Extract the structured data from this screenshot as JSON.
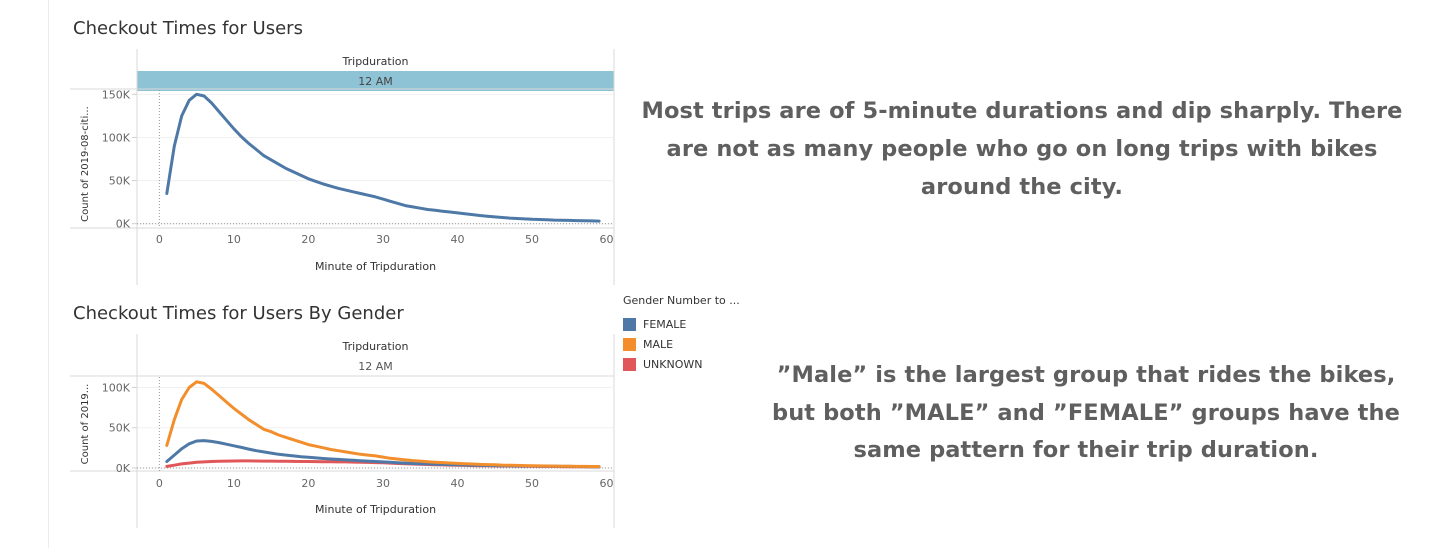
{
  "annotations": {
    "top": "Most trips are of 5-minute durations and dip sharply. There are not as many people who go on long trips with bikes around the city.",
    "bottom": "”Male” is the largest group that rides the bikes, but both ”MALE” and ”FEMALE” groups have the same pattern for their trip duration."
  },
  "legend": {
    "title": "Gender Number to ...",
    "items": [
      {
        "label": "FEMALE",
        "color": "#4e79a7"
      },
      {
        "label": "MALE",
        "color": "#f28e2b"
      },
      {
        "label": "UNKNOWN",
        "color": "#e15759"
      }
    ]
  },
  "chart_data": [
    {
      "type": "line",
      "title": "Checkout Times for Users",
      "column_header": "Tripduration",
      "column_value": "12 AM",
      "column_band_color": "#8ec3d6",
      "xlabel": "Minute of Tripduration",
      "ylabel": "Count of 2019-08-citi...",
      "xlim": [
        -3,
        61
      ],
      "ylim": [
        -5000,
        155000
      ],
      "x_ticks": [
        0,
        10,
        20,
        30,
        40,
        50,
        60
      ],
      "y_ticks": [
        {
          "value": 0,
          "label": "0K"
        },
        {
          "value": 50000,
          "label": "50K"
        },
        {
          "value": 100000,
          "label": "100K"
        },
        {
          "value": 150000,
          "label": "150K"
        }
      ],
      "x": [
        1,
        2,
        3,
        4,
        5,
        6,
        7,
        8,
        9,
        10,
        11,
        12,
        13,
        14,
        15,
        16,
        17,
        18,
        19,
        20,
        21,
        22,
        23,
        24,
        25,
        26,
        27,
        28,
        29,
        30,
        31,
        32,
        33,
        34,
        35,
        36,
        37,
        38,
        39,
        40,
        41,
        42,
        43,
        44,
        45,
        46,
        47,
        48,
        49,
        50,
        51,
        52,
        53,
        54,
        55,
        56,
        57,
        58,
        59
      ],
      "series": [
        {
          "color": "#4e79a7",
          "values": [
            35000,
            90000,
            125000,
            143000,
            150000,
            148000,
            140000,
            130000,
            120000,
            110000,
            101000,
            93000,
            86000,
            79000,
            74000,
            69000,
            64000,
            60000,
            56000,
            52000,
            49000,
            46000,
            43500,
            41000,
            39000,
            37000,
            35000,
            33000,
            31000,
            28500,
            26000,
            23500,
            21000,
            19500,
            18000,
            16500,
            15500,
            14500,
            13500,
            12500,
            11500,
            10500,
            9500,
            8700,
            7900,
            7200,
            6500,
            6000,
            5500,
            5100,
            4800,
            4500,
            4200,
            4000,
            3800,
            3600,
            3400,
            3200,
            3000
          ]
        }
      ]
    },
    {
      "type": "line",
      "title": "Checkout Times for Users By Gender",
      "column_header": "Tripduration",
      "column_value": "12 AM",
      "xlabel": "Minute of Tripduration",
      "ylabel": "Count of 2019...",
      "xlim": [
        -3,
        61
      ],
      "ylim": [
        -5000,
        113000
      ],
      "x_ticks": [
        0,
        10,
        20,
        30,
        40,
        50,
        60
      ],
      "y_ticks": [
        {
          "value": 0,
          "label": "0K"
        },
        {
          "value": 50000,
          "label": "50K"
        },
        {
          "value": 100000,
          "label": "100K"
        }
      ],
      "x": [
        1,
        2,
        3,
        4,
        5,
        6,
        7,
        8,
        9,
        10,
        11,
        12,
        13,
        14,
        15,
        16,
        17,
        18,
        19,
        20,
        21,
        22,
        23,
        24,
        25,
        26,
        27,
        28,
        29,
        30,
        31,
        32,
        33,
        34,
        35,
        36,
        37,
        38,
        39,
        40,
        41,
        42,
        43,
        44,
        45,
        46,
        47,
        48,
        49,
        50,
        51,
        52,
        53,
        54,
        55,
        56,
        57,
        58,
        59
      ],
      "series": [
        {
          "name": "UNKNOWN",
          "color": "#e15759",
          "values": [
            2000,
            3500,
            5000,
            6000,
            7000,
            7500,
            8000,
            8300,
            8500,
            8700,
            8800,
            8800,
            8700,
            8600,
            8500,
            8400,
            8300,
            8200,
            8100,
            8000,
            7900,
            7800,
            7700,
            7600,
            7500,
            7300,
            7100,
            6900,
            6700,
            6400,
            6000,
            5600,
            5200,
            4900,
            4600,
            4300,
            4000,
            3800,
            3600,
            3400,
            3200,
            3000,
            2800,
            2700,
            2600,
            2500,
            2400,
            2300,
            2200,
            2100,
            2000,
            1900,
            1800,
            1700,
            1600,
            1500,
            1400,
            1300,
            1200
          ]
        },
        {
          "name": "FEMALE",
          "color": "#4e79a7",
          "values": [
            8000,
            16000,
            24000,
            30000,
            33500,
            34000,
            33000,
            31500,
            29500,
            27500,
            25500,
            23500,
            21500,
            20000,
            18500,
            17000,
            16000,
            15000,
            14000,
            13200,
            12500,
            11800,
            11200,
            10600,
            10000,
            9500,
            9000,
            8500,
            8000,
            7500,
            7000,
            6500,
            6000,
            5600,
            5300,
            5000,
            4700,
            4400,
            4100,
            3900,
            3700,
            3500,
            3300,
            3100,
            2900,
            2800,
            2700,
            2600,
            2500,
            2400,
            2300,
            2200,
            2100,
            2000,
            1900,
            1800,
            1700,
            1600,
            1500
          ]
        },
        {
          "name": "MALE",
          "color": "#f28e2b",
          "values": [
            28000,
            60000,
            85000,
            100000,
            107000,
            105000,
            98000,
            90000,
            82000,
            74000,
            67000,
            60000,
            54000,
            48000,
            45000,
            41000,
            38000,
            35000,
            32000,
            29000,
            27000,
            25000,
            23000,
            21500,
            20000,
            18500,
            17000,
            16000,
            15000,
            13500,
            12000,
            11000,
            10000,
            9200,
            8500,
            7800,
            7200,
            6700,
            6200,
            5700,
            5300,
            4900,
            4500,
            4200,
            3900,
            3600,
            3400,
            3200,
            3000,
            2800,
            2600,
            2400,
            2300,
            2200,
            2100,
            2000,
            1900,
            1800,
            1700
          ]
        }
      ]
    }
  ]
}
